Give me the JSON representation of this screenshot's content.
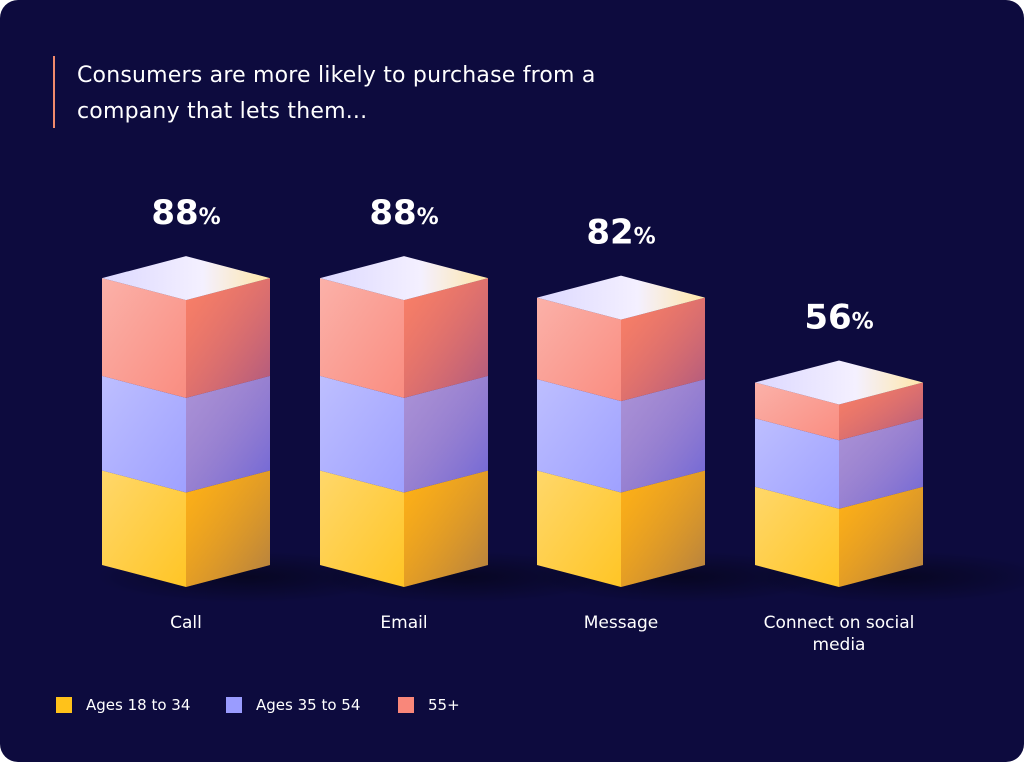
{
  "chart_data": {
    "type": "bar",
    "stacked": true,
    "title": "Consumers are more likely to purchase from a company that lets them...",
    "categories": [
      "Call",
      "Email",
      "Message",
      "Connect on social media"
    ],
    "series": [
      {
        "name": "Ages 18 to 34",
        "color": "#ffc21a",
        "values": [
          29,
          29,
          29,
          24
        ]
      },
      {
        "name": "Ages 35 to 54",
        "color": "#9a9cff",
        "values": [
          29,
          29,
          28,
          21
        ]
      },
      {
        "name": "55+",
        "color": "#f9877a",
        "values": [
          30,
          30,
          25,
          11
        ]
      }
    ],
    "totals": [
      88,
      88,
      82,
      56
    ],
    "total_labels": [
      "88%",
      "88%",
      "82%",
      "56%"
    ]
  }
}
